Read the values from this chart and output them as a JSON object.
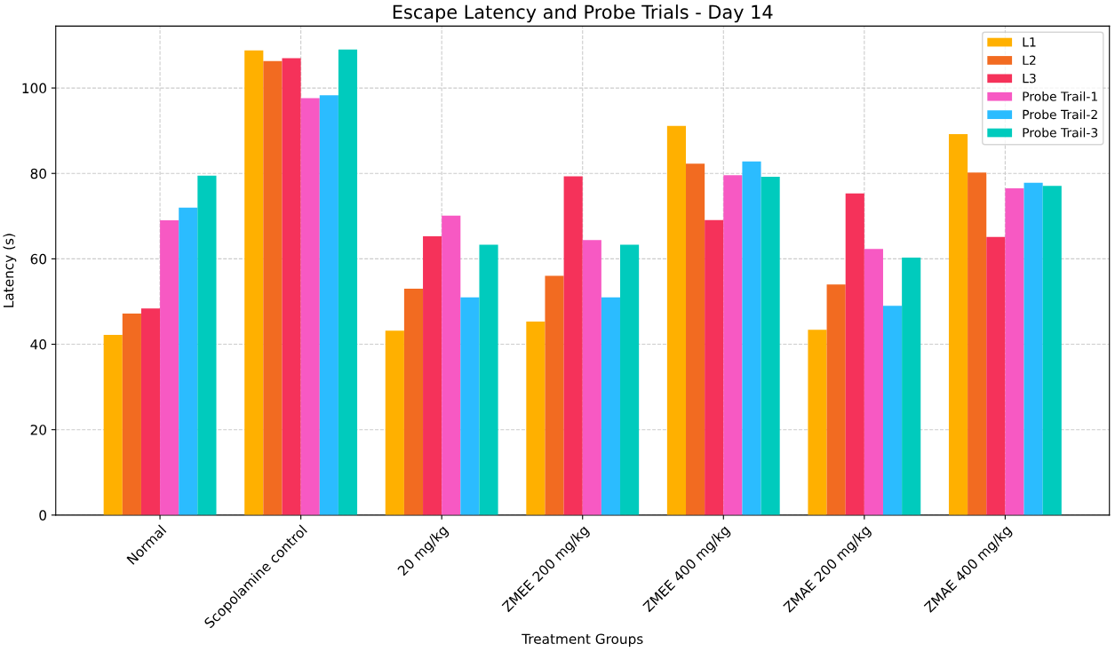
{
  "chart_data": {
    "type": "bar",
    "title": "Escape Latency and Probe Trials - Day 14",
    "xlabel": "Treatment Groups",
    "ylabel": "Latency (s)",
    "categories": [
      "Normal",
      "Scopolamine control",
      "20 mg/kg",
      "ZMEE 200 mg/kg",
      "ZMEE 400 mg/kg",
      "ZMAE 200 mg/kg",
      "ZMAE 400 mg/kg"
    ],
    "series": [
      {
        "name": "L1",
        "color": "#ffb000",
        "values": [
          42.2,
          108.8,
          43.2,
          45.3,
          91.1,
          43.4,
          89.2
        ]
      },
      {
        "name": "L2",
        "color": "#f26b21",
        "values": [
          47.2,
          106.3,
          53.0,
          56.0,
          82.3,
          54.0,
          80.2
        ]
      },
      {
        "name": "L3",
        "color": "#f5325a",
        "values": [
          48.4,
          107.0,
          65.3,
          79.3,
          69.1,
          75.3,
          65.1
        ]
      },
      {
        "name": "Probe Trail-1",
        "color": "#f759c3",
        "values": [
          69.0,
          97.6,
          70.1,
          64.4,
          79.6,
          62.3,
          76.5
        ]
      },
      {
        "name": "Probe Trail-2",
        "color": "#2bbcff",
        "values": [
          72.0,
          98.3,
          51.0,
          51.0,
          82.8,
          49.0,
          77.8
        ]
      },
      {
        "name": "Probe Trail-3",
        "color": "#00cbbd",
        "values": [
          79.5,
          109.0,
          63.3,
          63.3,
          79.2,
          60.3,
          77.1
        ]
      }
    ],
    "ylim": [
      0,
      114.5
    ],
    "yticks": [
      0,
      20,
      40,
      60,
      80,
      100
    ],
    "grid": true,
    "legend": "top right"
  }
}
